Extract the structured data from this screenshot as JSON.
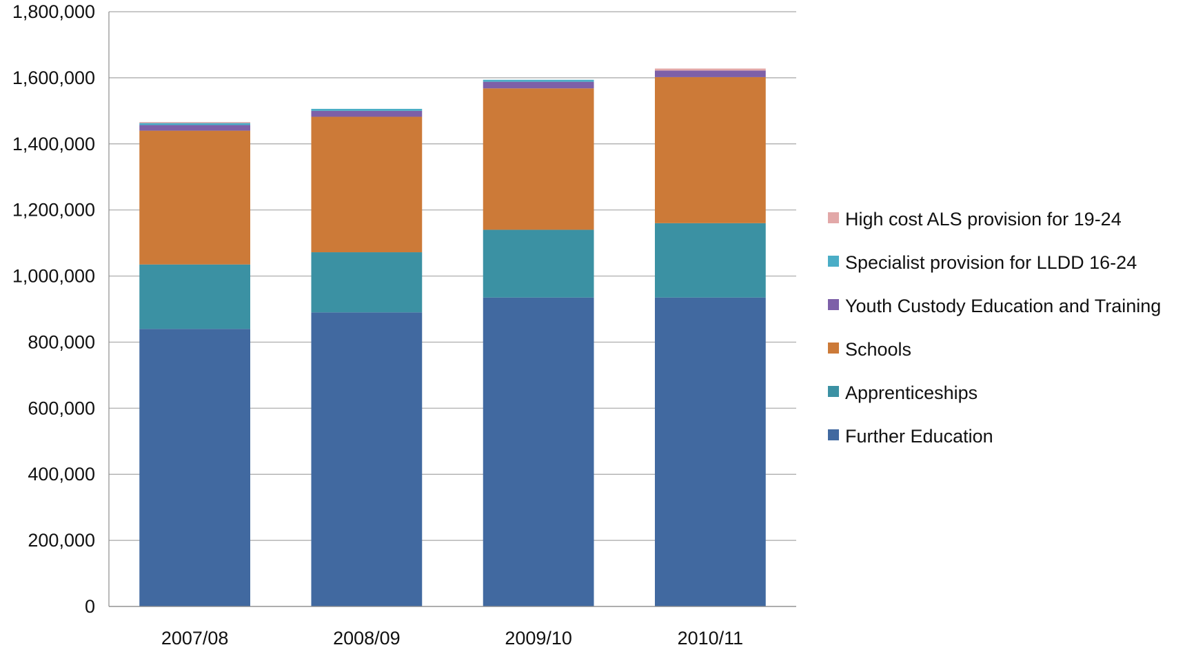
{
  "chart_data": {
    "type": "bar",
    "stacked": true,
    "categories": [
      "2007/08",
      "2008/09",
      "2009/10",
      "2010/11"
    ],
    "ylim": [
      0,
      1800000
    ],
    "ytick_values": [
      0,
      200000,
      400000,
      600000,
      800000,
      1000000,
      1200000,
      1400000,
      1600000,
      1800000
    ],
    "ytick_labels": [
      "0",
      "200,000",
      "400,000",
      "600,000",
      "800,000",
      "1,000,000",
      "1,200,000",
      "1,400,000",
      "1,600,000",
      "1,800,000"
    ],
    "grid": true,
    "legend_position": "right",
    "series": [
      {
        "name": "Further Education",
        "color": "#4169A0",
        "values": [
          840000,
          890000,
          935000,
          935000
        ]
      },
      {
        "name": "Apprenticeships",
        "color": "#3B91A3",
        "values": [
          195000,
          182000,
          205000,
          225000
        ]
      },
      {
        "name": "Schools",
        "color": "#CC7A38",
        "values": [
          405000,
          410000,
          428000,
          442000
        ]
      },
      {
        "name": "Youth Custody Education and Training",
        "color": "#7D60A8",
        "values": [
          17000,
          18000,
          20000,
          20000
        ]
      },
      {
        "name": "Specialist provision for LLDD 16-24",
        "color": "#4AADC6",
        "values": [
          6000,
          6000,
          6000,
          0
        ]
      },
      {
        "name": "High cost ALS provision for 19-24",
        "color": "#E2A8A8",
        "values": [
          3000,
          0,
          0,
          6000
        ]
      }
    ]
  }
}
